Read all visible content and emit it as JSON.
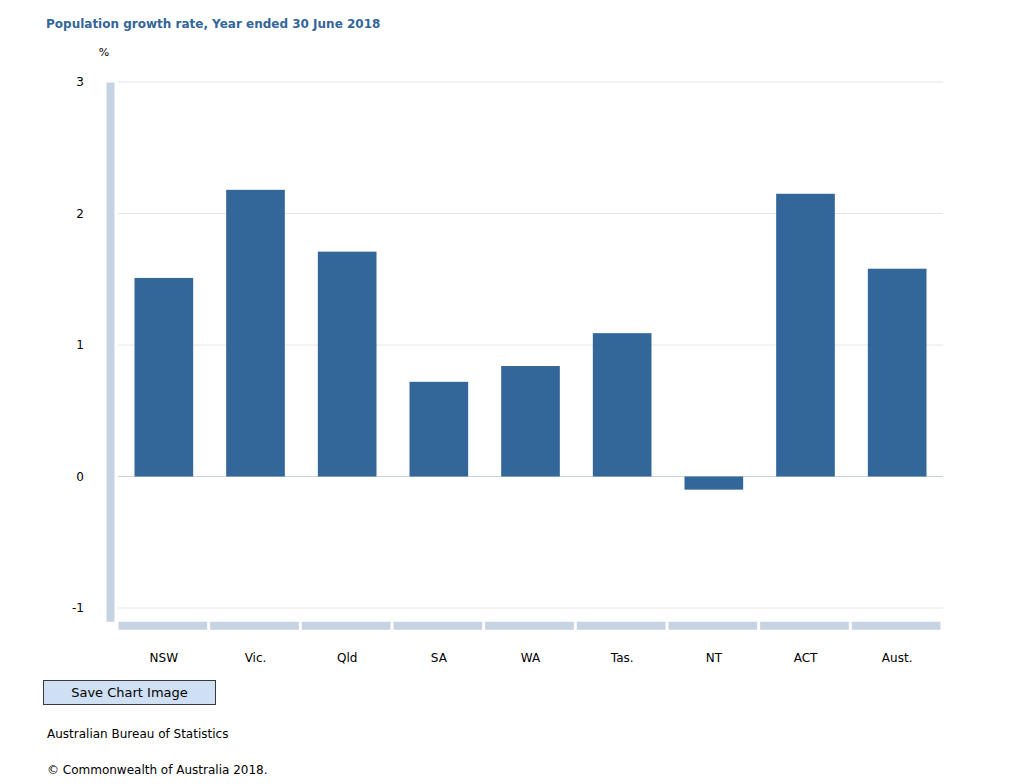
{
  "chart_data": {
    "type": "bar",
    "title": "Population growth rate, Year ended 30 June 2018",
    "y_label": "%",
    "categories": [
      "NSW",
      "Vic.",
      "Qld",
      "SA",
      "WA",
      "Tas.",
      "NT",
      "ACT",
      "Aust."
    ],
    "values": [
      1.51,
      2.18,
      1.71,
      0.72,
      0.84,
      1.09,
      -0.1,
      2.15,
      1.58
    ],
    "color": "#336699",
    "ylim": [
      -1.1,
      3
    ],
    "yticks": [
      -1,
      0,
      1,
      2,
      3
    ],
    "grid": true,
    "annotations": [
      "Save Chart Image",
      "Australian Bureau of Statistics",
      "© Commonwealth of Australia 2018."
    ]
  }
}
